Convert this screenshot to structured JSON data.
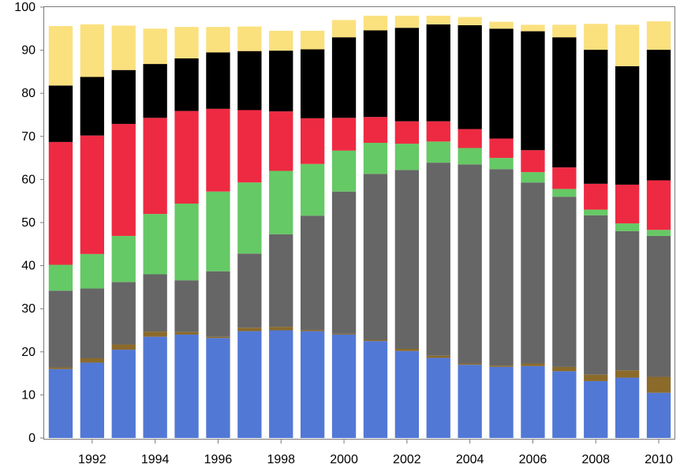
{
  "chart_data": {
    "type": "bar",
    "stacked": true,
    "title": "",
    "xlabel": "",
    "ylabel": "",
    "ylim": [
      0,
      100
    ],
    "grid": false,
    "legend": "none",
    "y_ticks": [
      0,
      10,
      20,
      30,
      40,
      50,
      60,
      70,
      80,
      90,
      100
    ],
    "x_tick_labels": [
      "1992",
      "1994",
      "1996",
      "1998",
      "2000",
      "2002",
      "2004",
      "2006",
      "2008",
      "2010"
    ],
    "categories": [
      "1991",
      "1992",
      "1993",
      "1994",
      "1995",
      "1996",
      "1997",
      "1998",
      "1999",
      "2000",
      "2001",
      "2002",
      "2003",
      "2004",
      "2005",
      "2006",
      "2007",
      "2008",
      "2009",
      "2010"
    ],
    "series": [
      {
        "color": "#5278d6",
        "values": [
          16,
          17.5,
          20.5,
          23.5,
          24,
          23.2,
          24.8,
          25,
          24.8,
          24,
          22.5,
          20.2,
          18.6,
          17,
          16.5,
          16.7,
          15.5,
          13.2,
          14,
          10.5
        ]
      },
      {
        "color": "#8b6a2a",
        "values": [
          0.4,
          1,
          1.2,
          1.2,
          0.6,
          0.3,
          0.8,
          0.8,
          0.3,
          0.2,
          0.3,
          0.5,
          0.5,
          0.3,
          0.3,
          0.6,
          1,
          1.5,
          1.7,
          3.7
        ]
      },
      {
        "color": "#666666",
        "values": [
          17.8,
          16.2,
          14.5,
          13.3,
          12,
          15.2,
          17.2,
          21.5,
          26.5,
          33,
          38.5,
          41.5,
          44.8,
          46.2,
          45.6,
          42,
          39.5,
          37,
          32.3,
          32.7
        ]
      },
      {
        "color": "#65c965",
        "values": [
          6,
          8,
          10.7,
          14,
          17.8,
          18.5,
          16.5,
          14.7,
          12,
          9.5,
          7.2,
          6.1,
          4.9,
          3.8,
          2.6,
          2.4,
          1.8,
          1.3,
          1.8,
          1.4
        ]
      },
      {
        "color": "#ee2a42",
        "values": [
          28.5,
          27.5,
          26,
          22.3,
          21.5,
          19.2,
          16.8,
          13.8,
          10.6,
          7.6,
          6,
          5.2,
          4.7,
          4.4,
          4.5,
          5.1,
          5,
          6,
          9,
          11.5
        ]
      },
      {
        "color": "#000000",
        "values": [
          13.1,
          13.6,
          12.5,
          12.5,
          12.2,
          13.1,
          13.7,
          14.1,
          16,
          18.7,
          20.1,
          21.7,
          22.5,
          24.1,
          25.5,
          27.6,
          30.2,
          31.1,
          27.5,
          30.3
        ]
      },
      {
        "color": "#fbe07e",
        "values": [
          13.8,
          12.2,
          10.3,
          8.2,
          7.3,
          5.9,
          5.7,
          4.6,
          4.3,
          4.0,
          3.4,
          2.8,
          2.0,
          1.9,
          1.6,
          1.5,
          2.9,
          6.0,
          9.6,
          6.6
        ]
      }
    ]
  }
}
